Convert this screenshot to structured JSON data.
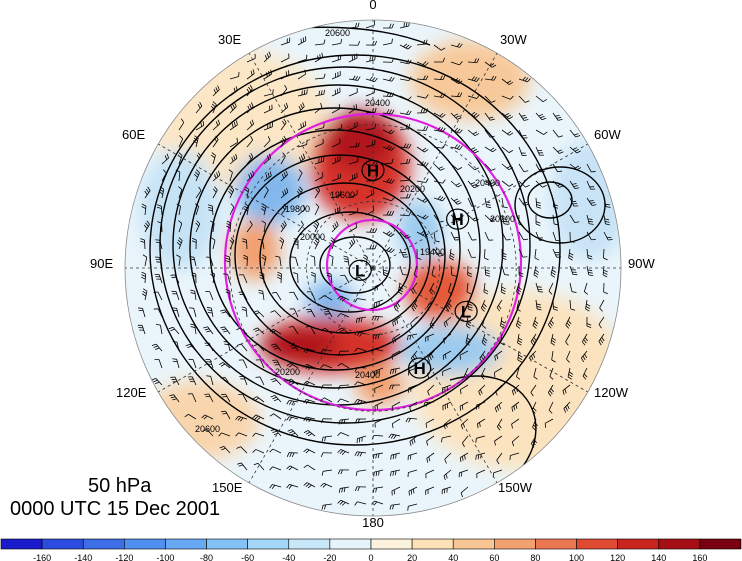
{
  "caption": {
    "level": "50 hPa",
    "time": "0000 UTC 15 Dec 2001"
  },
  "longitude_labels": {
    "top": "0",
    "bottom": "180",
    "e30": "30E",
    "e60": "60E",
    "e90": "90E",
    "e120": "120E",
    "e150": "150E",
    "w30": "30W",
    "w60": "60W",
    "w90": "90W",
    "w120": "120W",
    "w150": "150W"
  },
  "pressure_centers": [
    {
      "name": "H",
      "lon": 0,
      "lat": 47
    },
    {
      "name": "H",
      "lon": -60,
      "lat": 47
    },
    {
      "name": "L",
      "lon": 100,
      "lat": 84
    },
    {
      "name": "L",
      "lon": -115,
      "lat": 45
    },
    {
      "name": "H",
      "lon": -155,
      "lat": 42
    }
  ],
  "contour_labels": [
    "20600",
    "20400",
    "20200",
    "20000",
    "19800",
    "19600",
    "19400",
    "20400",
    "20200",
    "20600",
    "20200",
    "20400"
  ],
  "colorbar": {
    "ticks": [
      "-160",
      "-140",
      "-120",
      "-100",
      "-80",
      "-60",
      "-40",
      "-20",
      "0",
      "20",
      "40",
      "60",
      "80",
      "100",
      "120",
      "140",
      "160"
    ],
    "colors": [
      "#1a1acc",
      "#2d4de0",
      "#3d6ee8",
      "#4f8fee",
      "#66a9f2",
      "#84c1f5",
      "#a6d6f7",
      "#c8e8f9",
      "#e6f4fb",
      "#fdf3dd",
      "#fbe0b8",
      "#f7c594",
      "#f2a171",
      "#ea774f",
      "#df4a33",
      "#c9241f",
      "#a50f15",
      "#7a0011"
    ]
  }
}
